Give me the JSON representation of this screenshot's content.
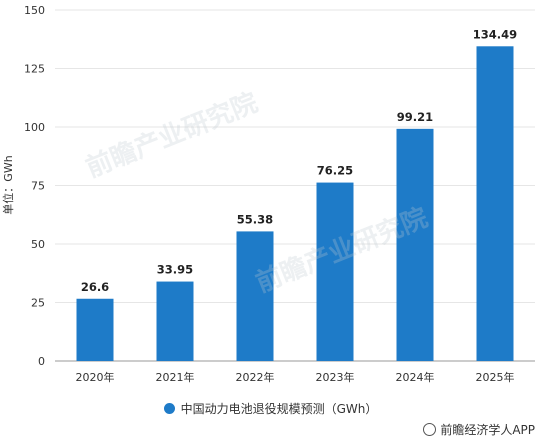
{
  "chart_data": {
    "type": "bar",
    "categories": [
      "2020年",
      "2021年",
      "2022年",
      "2023年",
      "2024年",
      "2025年"
    ],
    "values": [
      26.6,
      33.95,
      55.38,
      76.25,
      99.21,
      134.49
    ],
    "value_labels": [
      "26.6",
      "33.95",
      "55.38",
      "76.25",
      "99.21",
      "134.49"
    ],
    "ylabel": "单位：GWh",
    "ylim": [
      0,
      150
    ],
    "yticks": [
      0,
      25,
      50,
      75,
      100,
      125,
      150
    ],
    "grid": true,
    "bar_color": "#1E7BC8",
    "legend": {
      "label": "中国动力电池退役规模预测（GWh）",
      "placement": "bottom"
    }
  },
  "watermark": "前瞻产业研究院",
  "source": "前瞻经济学人APP"
}
